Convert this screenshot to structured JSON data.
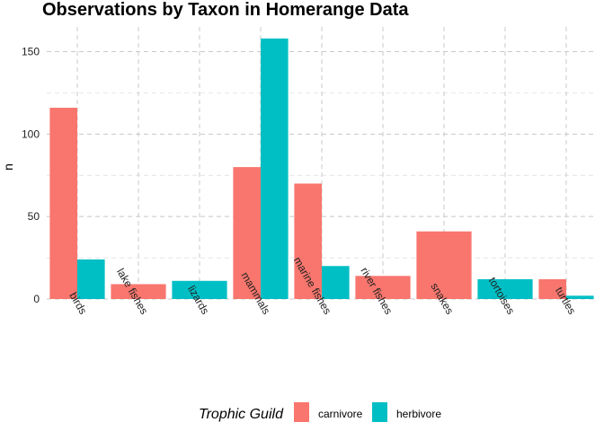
{
  "chart_data": {
    "type": "bar",
    "title": "Observations by Taxon in Homerange Data",
    "xlabel": "",
    "ylabel": "n",
    "ylim": [
      0,
      165
    ],
    "yticks": [
      0,
      50,
      100,
      150
    ],
    "grid": true,
    "legend_position": "bottom",
    "legend_title": "Trophic Guild",
    "categories": [
      "birds",
      "lake fishes",
      "lizards",
      "mammals",
      "marine fishes",
      "river fishes",
      "snakes",
      "tortoises",
      "turtles"
    ],
    "series": [
      {
        "name": "carnivore",
        "color": "#F8766D",
        "values": [
          116,
          9,
          null,
          80,
          70,
          14,
          41,
          null,
          12
        ]
      },
      {
        "name": "herbivore",
        "color": "#00BFC4",
        "values": [
          24,
          null,
          11,
          158,
          20,
          null,
          null,
          12,
          2
        ]
      }
    ]
  }
}
